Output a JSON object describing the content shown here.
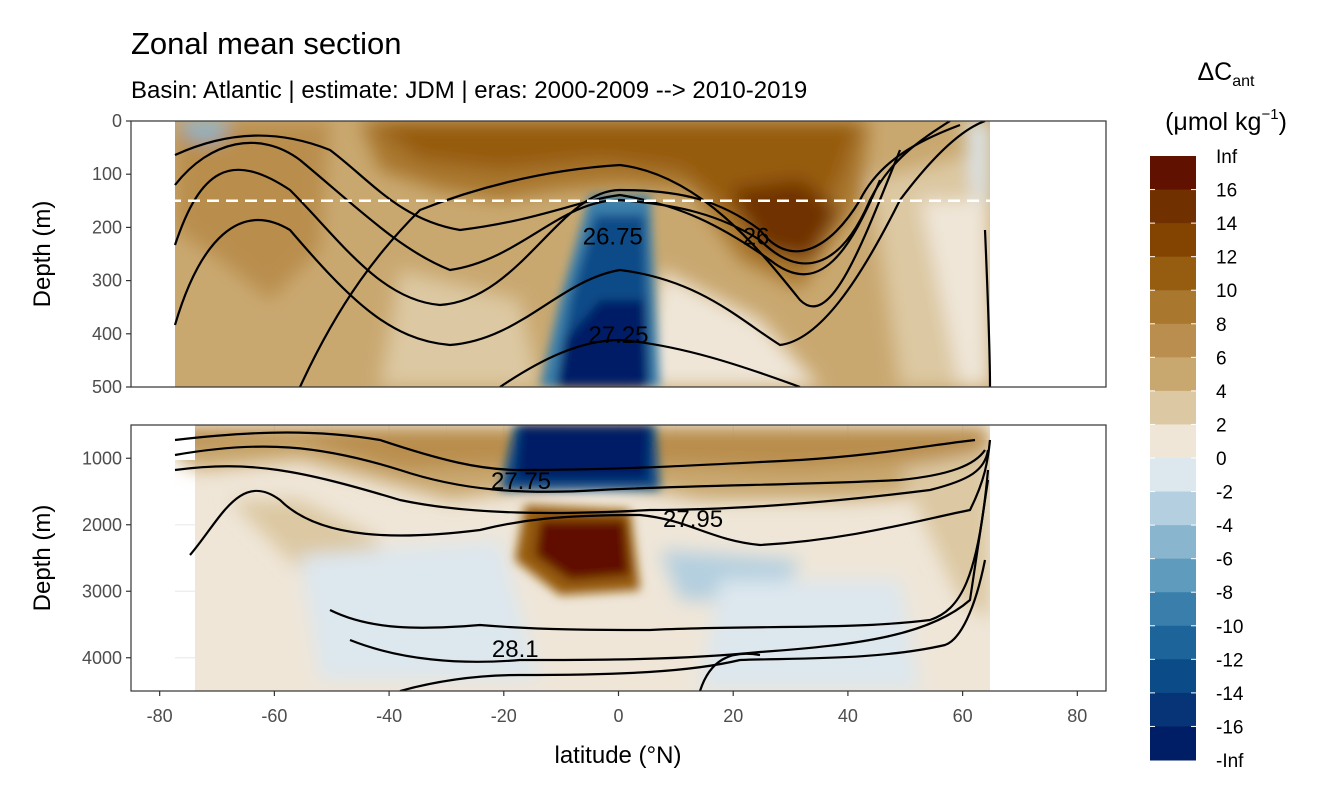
{
  "chart_data": {
    "type": "heatmap",
    "title": "Zonal mean section",
    "subtitle": "Basin: Atlantic | estimate: JDM  | eras: 2000-2009 --> 2010-2019",
    "xlabel": "latitude (°N)",
    "ylabel": "Depth (m)",
    "x_ticks": [
      "-80",
      "-60",
      "-40",
      "-20",
      "0",
      "20",
      "40",
      "60",
      "80"
    ],
    "xlim": [
      -85,
      85
    ],
    "data_lat_range": [
      -78,
      65
    ],
    "panels": [
      {
        "name": "upper",
        "ylim": [
          0,
          500
        ],
        "y_ticks": [
          "0",
          "100",
          "200",
          "300",
          "400",
          "500"
        ],
        "reference_line_depth": 150
      },
      {
        "name": "lower",
        "ylim": [
          500,
          4500
        ],
        "y_ticks": [
          "1000",
          "2000",
          "3000",
          "4000"
        ]
      }
    ],
    "legend": {
      "title_main": "ΔC",
      "title_sub": "ant",
      "unit_text": "(μmol kg",
      "unit_sup": "−1",
      "unit_close": ")",
      "labels": [
        "Inf",
        "16",
        "14",
        "12",
        "10",
        "8",
        "6",
        "4",
        "2",
        "0",
        "-2",
        "-4",
        "-6",
        "-8",
        "-10",
        "-12",
        "-14",
        "-16",
        "-Inf"
      ],
      "colors": [
        "#611100",
        "#703000",
        "#824400",
        "#965c10",
        "#a9772e",
        "#b98e4e",
        "#c9a870",
        "#dcc8a2",
        "#efe6d8",
        "#dde7ee",
        "#b4cfdf",
        "#89b6ce",
        "#5e9bbc",
        "#3a7fab",
        "#1c6499",
        "#0b4c88",
        "#073476",
        "#001e66"
      ]
    },
    "contour_labels": [
      {
        "text": "26.75",
        "lat": -1,
        "depth": 215
      },
      {
        "text": "26",
        "lat": 24,
        "depth": 215
      },
      {
        "text": "27.25",
        "lat": 0,
        "depth": 400
      },
      {
        "text": "27.75",
        "lat": -17,
        "depth": 1330
      },
      {
        "text": "27.95",
        "lat": 13,
        "depth": 1900
      },
      {
        "text": "28.1",
        "lat": -18,
        "depth": 3850
      }
    ],
    "features": [
      {
        "name": "positive-anomaly-upper-south",
        "value": 12,
        "lat_range": [
          -70,
          -25
        ],
        "depth_range": [
          0,
          100
        ]
      },
      {
        "name": "positive-anomaly-upper-north",
        "value": 14,
        "lat_range": [
          20,
          42
        ],
        "depth_range": [
          150,
          280
        ]
      },
      {
        "name": "negative-anomaly-upper-equator",
        "value": -16,
        "lat_range": [
          -12,
          4
        ],
        "depth_range": [
          300,
          500
        ]
      },
      {
        "name": "negative-anomaly-deep-equator",
        "value": -16,
        "lat_range": [
          -20,
          5
        ],
        "depth_range": [
          500,
          1400
        ]
      },
      {
        "name": "positive-anomaly-deep-equator",
        "value": 16,
        "lat_range": [
          -17,
          3
        ],
        "depth_range": [
          1700,
          2700
        ]
      }
    ]
  }
}
